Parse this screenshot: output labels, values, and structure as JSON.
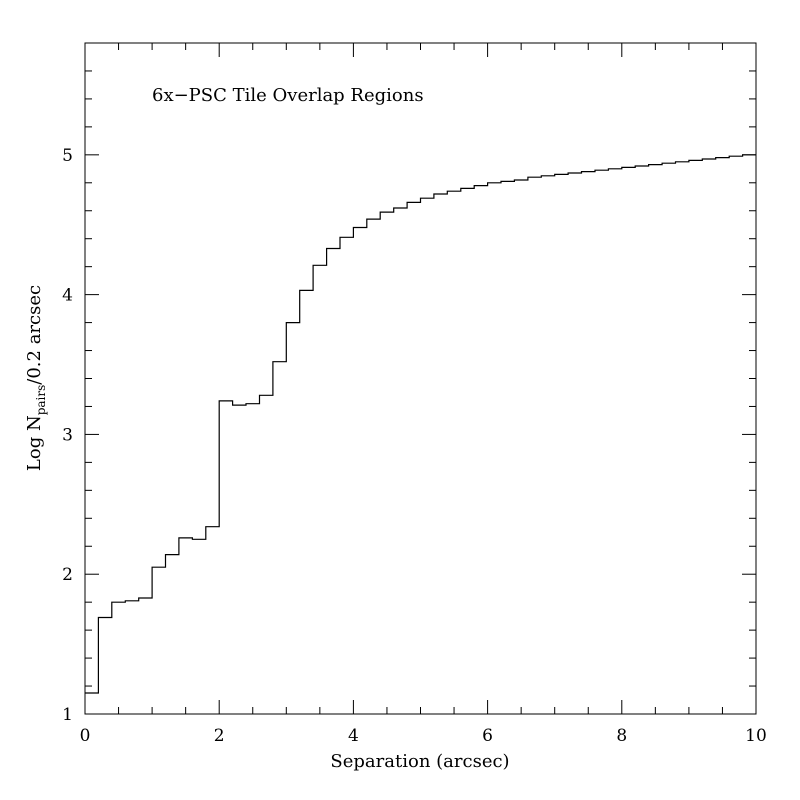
{
  "chart_data": {
    "type": "line",
    "style": "step-histogram",
    "annotation": "6x−PSC Tile Overlap Regions",
    "xlabel": "Separation (arcsec)",
    "ylabel": {
      "prefix": "Log N",
      "subscript": "pairs",
      "suffix": "/0.2 arcsec"
    },
    "xlim": [
      0,
      10
    ],
    "ylim": [
      1,
      5.8
    ],
    "x_major_ticks": [
      0,
      2,
      4,
      6,
      8,
      10
    ],
    "x_tick_labels": [
      "0",
      "2",
      "4",
      "6",
      "8",
      "10"
    ],
    "y_major_ticks": [
      1,
      2,
      3,
      4,
      5
    ],
    "y_tick_labels": [
      "1",
      "2",
      "3",
      "4",
      "5"
    ],
    "grid": false,
    "bin_width": 0.2,
    "bin_edges_start": 0,
    "values": [
      1.15,
      1.69,
      1.8,
      1.81,
      1.83,
      2.05,
      2.14,
      2.26,
      2.25,
      2.34,
      3.24,
      3.21,
      3.22,
      3.28,
      3.52,
      3.8,
      4.03,
      4.21,
      4.33,
      4.41,
      4.48,
      4.54,
      4.59,
      4.62,
      4.66,
      4.69,
      4.72,
      4.74,
      4.76,
      4.78,
      4.8,
      4.81,
      4.82,
      4.84,
      4.85,
      4.86,
      4.87,
      4.88,
      4.89,
      4.9,
      4.91,
      4.92,
      4.93,
      4.94,
      4.95,
      4.96,
      4.97,
      4.98,
      4.99,
      5.0
    ]
  }
}
